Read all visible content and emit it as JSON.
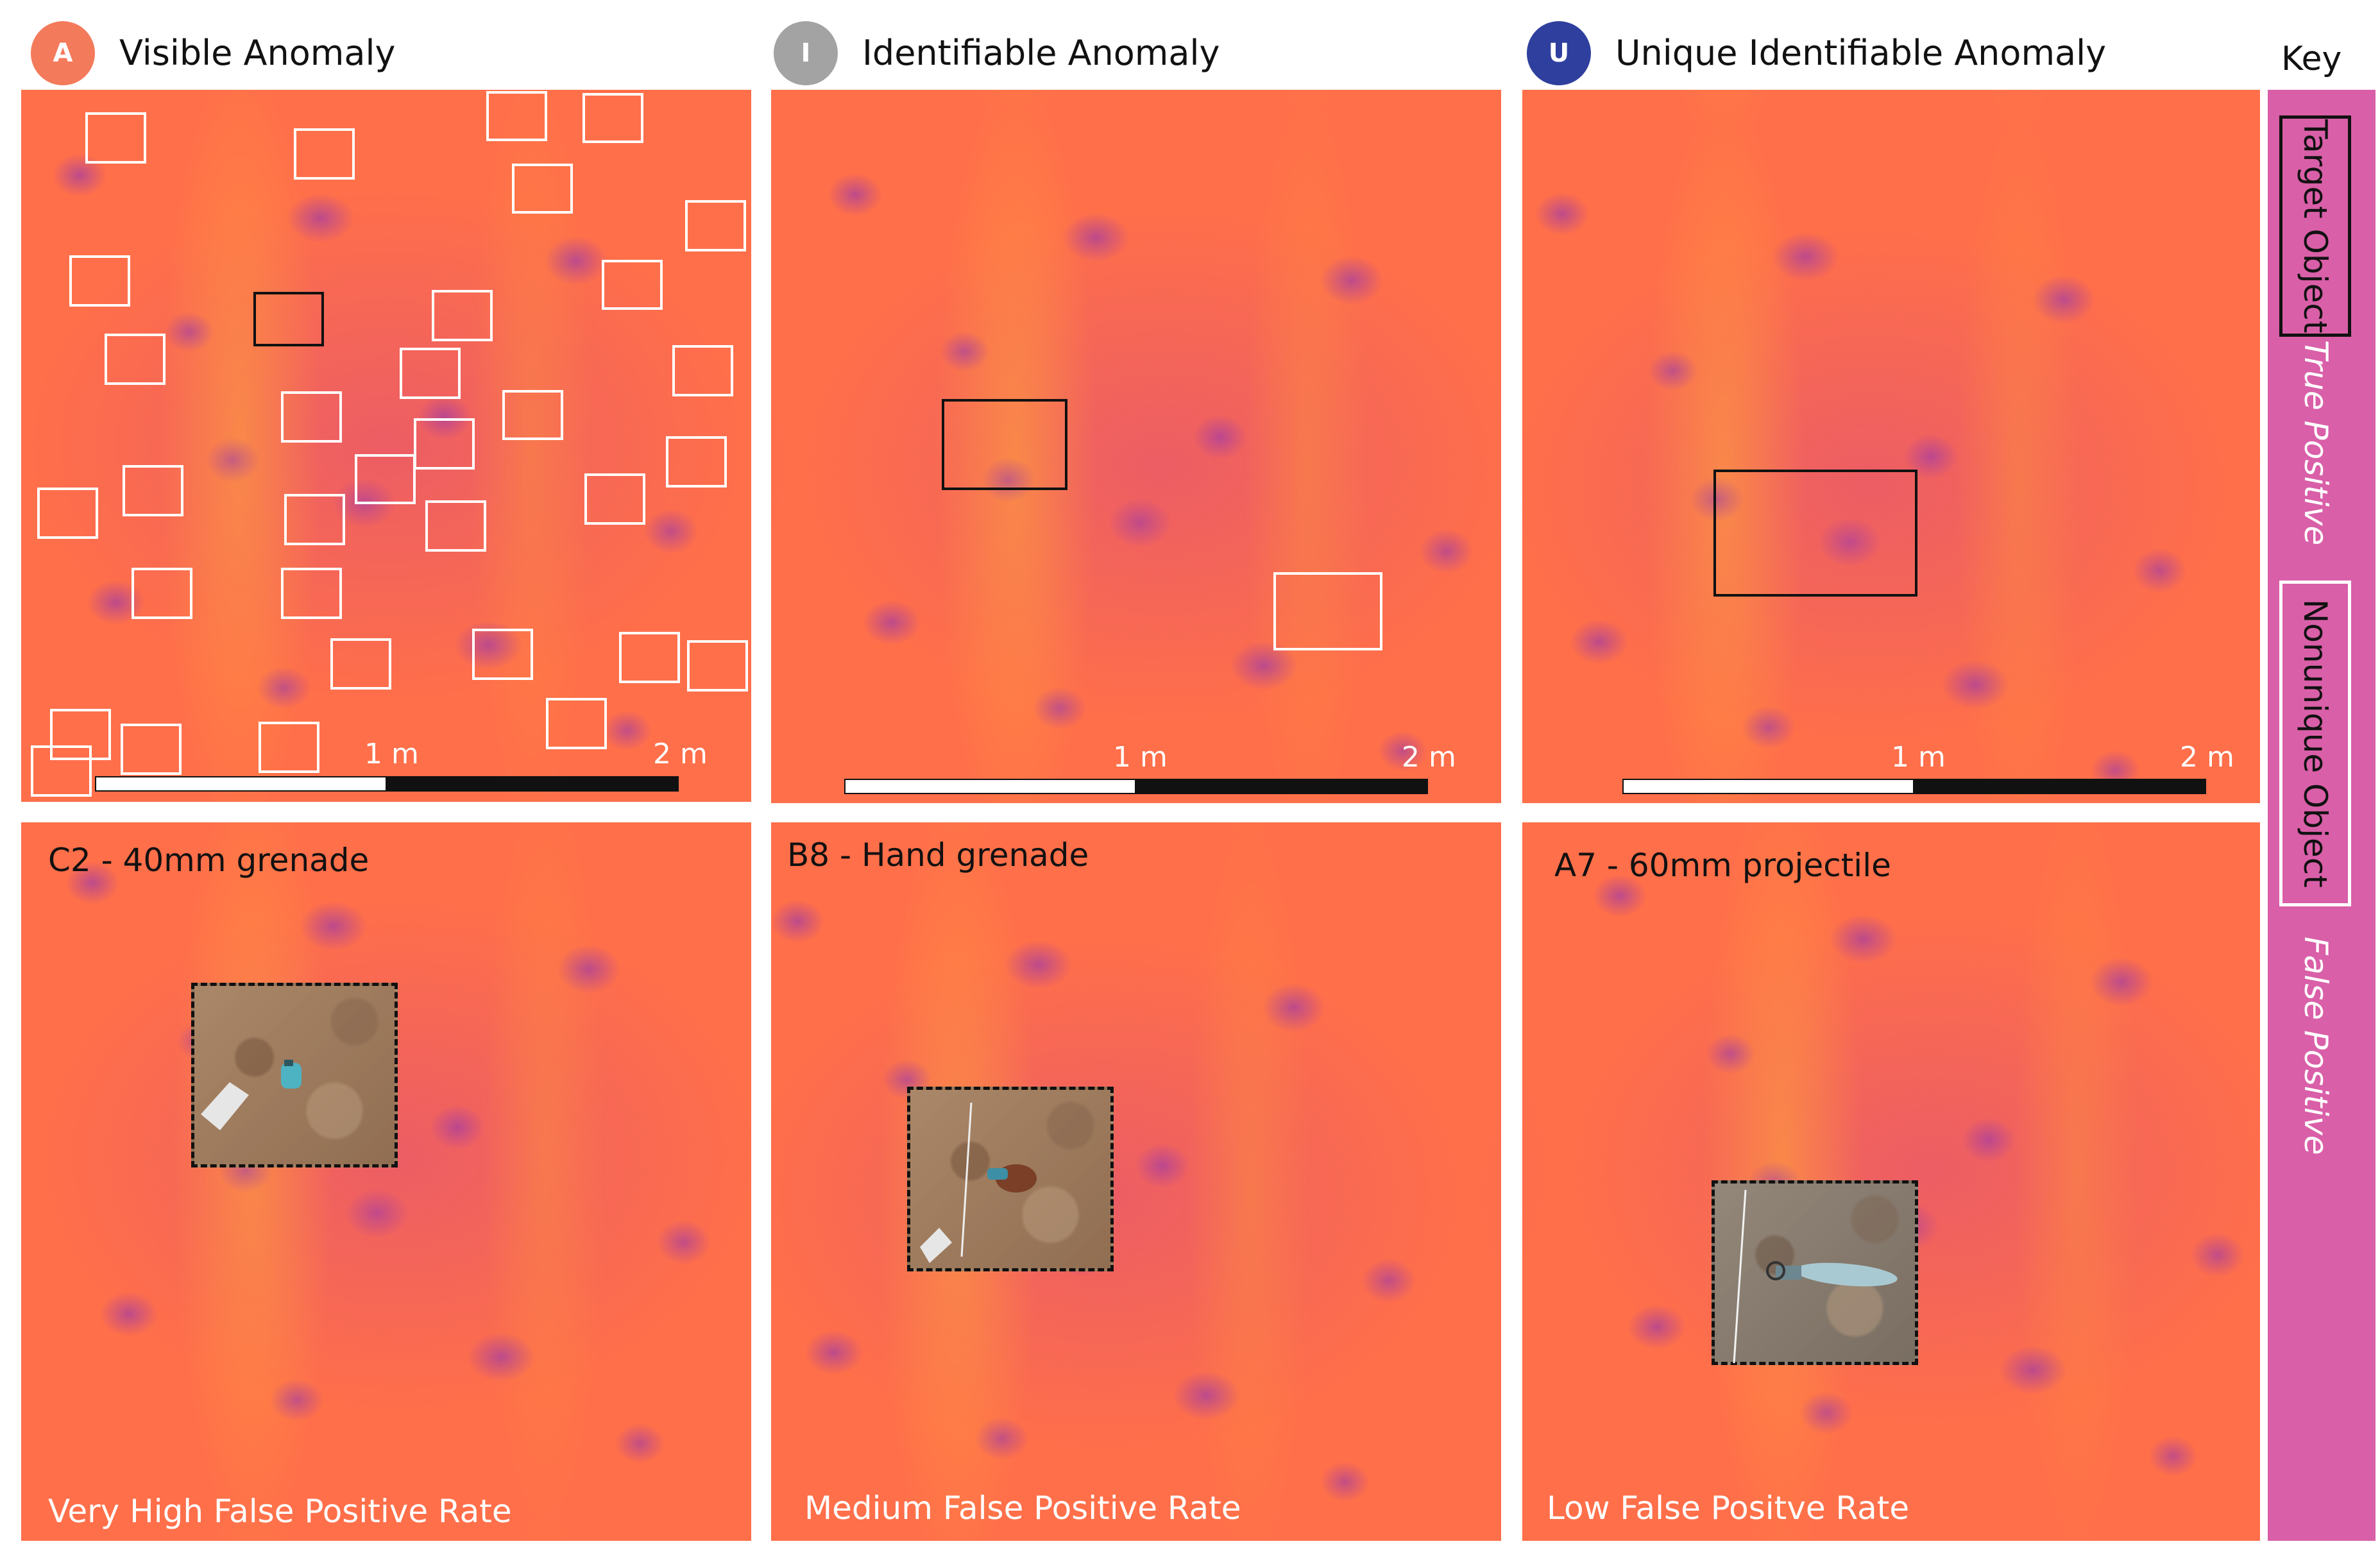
{
  "headers": [
    {
      "badge": "A",
      "label": "Visible Anomaly",
      "color": "#f47a5c"
    },
    {
      "badge": "I",
      "label": "Identifiable Anomaly",
      "color": "#a3a3a3"
    },
    {
      "badge": "U",
      "label": "Unique Identifiable Anomaly",
      "color": "#2f3f9e"
    }
  ],
  "key": {
    "title": "Key",
    "target_label": "Target Object",
    "true_positive": "True Positive",
    "nonunique_label": "Nonunique Object",
    "false_positive": "False Positive"
  },
  "scale": {
    "tick1": "1 m",
    "tick2": "2 m"
  },
  "bottom_panels": [
    {
      "title": "C2 - 40mm grenade",
      "rate": "Very High False Positive Rate"
    },
    {
      "title": "B8 - Hand grenade",
      "rate": "Medium False Positive Rate"
    },
    {
      "title": "A7 - 60mm projectile",
      "rate": "Low False Positve Rate"
    }
  ],
  "colors": {
    "visible": "#f47a5c",
    "identifiable": "#a3a3a3",
    "unique": "#2f3f9e",
    "key_bar": "#d95fa8"
  }
}
